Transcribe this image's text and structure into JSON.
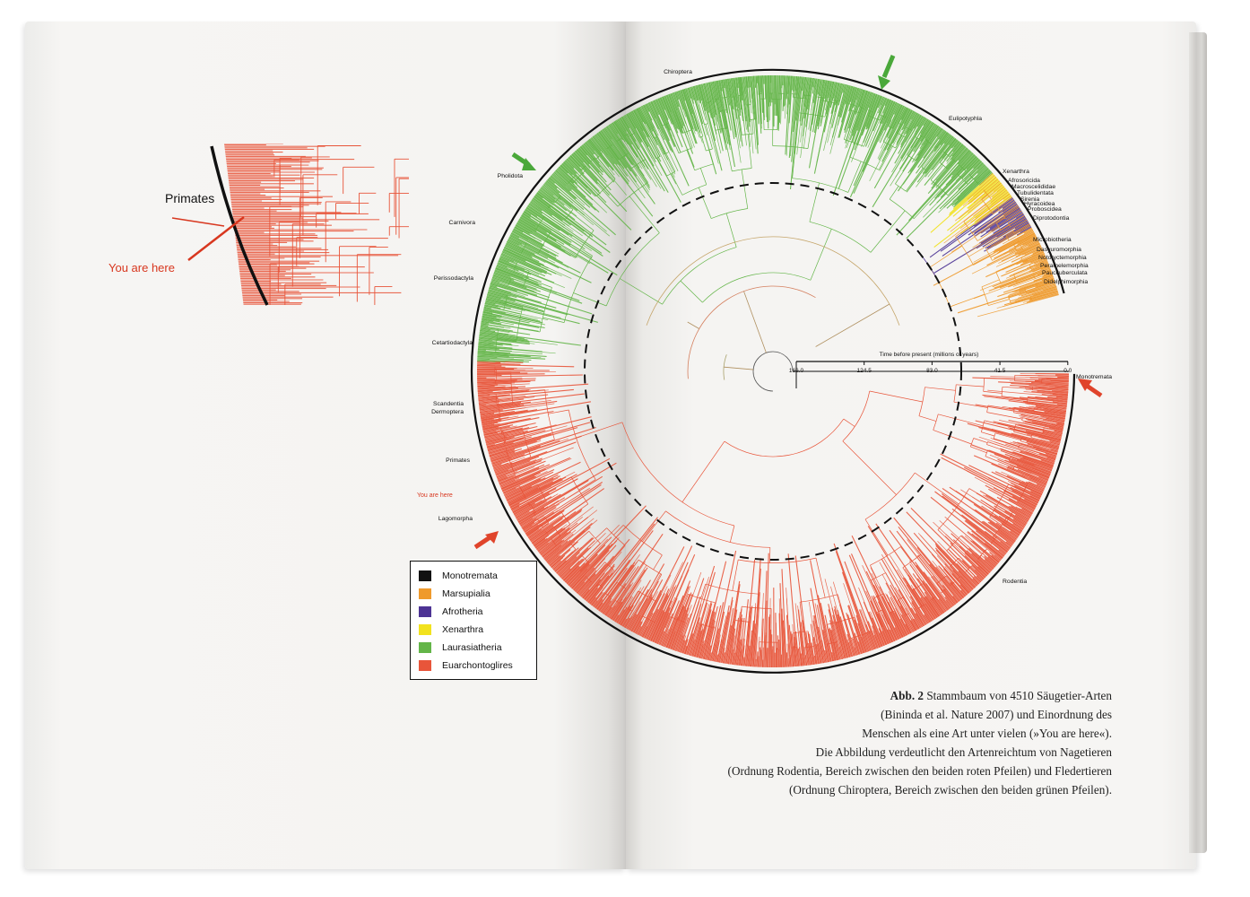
{
  "inset": {
    "clade_label": "Primates",
    "marker_label": "You are here"
  },
  "circle": {
    "axis_title": "Time before present (millions of years)",
    "ticks": [
      "166.0",
      "124.5",
      "83.0",
      "41.5",
      "0.0"
    ],
    "order_labels": [
      "Chiroptera",
      "Eulipotyphla",
      "Pholidota",
      "Carnivora",
      "Perissodactyla",
      "Cetartiodactyla",
      "Scandentia",
      "Dermoptera",
      "Primates",
      "Lagomorpha",
      "Rodentia",
      "Monotremata",
      "Xenarthra",
      "Afrosoricida",
      "Macroscelididae",
      "Tubulidentata",
      "Sirenia",
      "Hyracoidea",
      "Proboscidea",
      "Diprotodontia",
      "Microbiotheria",
      "Dasyuromorphia",
      "Notoryctemorphia",
      "Peramelemorphia",
      "Paucituberculata",
      "Didelphimorphia"
    ],
    "marker_label": "You are here"
  },
  "legend": [
    {
      "label": "Monotremata",
      "color": "#111111"
    },
    {
      "label": "Marsupialia",
      "color": "#ef9a2c"
    },
    {
      "label": "Afrotheria",
      "color": "#4d3394"
    },
    {
      "label": "Xenarthra",
      "color": "#f2e21e"
    },
    {
      "label": "Laurasiatheria",
      "color": "#63b548"
    },
    {
      "label": "Euarchontoglires",
      "color": "#e8553a"
    }
  ],
  "caption": {
    "fig_label": "Abb. 2",
    "lines": [
      "Stammbaum von 4510 Säugetier-Arten",
      "(Bininda  et al. Nature 2007) und Einordnung des",
      "Menschen als eine Art unter vielen (»You are here«).",
      "Die Abbildung verdeutlicht den Artenreichtum von Nagetieren",
      "(Ordnung Rodentia, Bereich zwischen den beiden roten Pfeilen) und Fledertieren",
      "(Ordnung Chiroptera, Bereich zwischen den beiden grünen Pfeilen)."
    ]
  }
}
